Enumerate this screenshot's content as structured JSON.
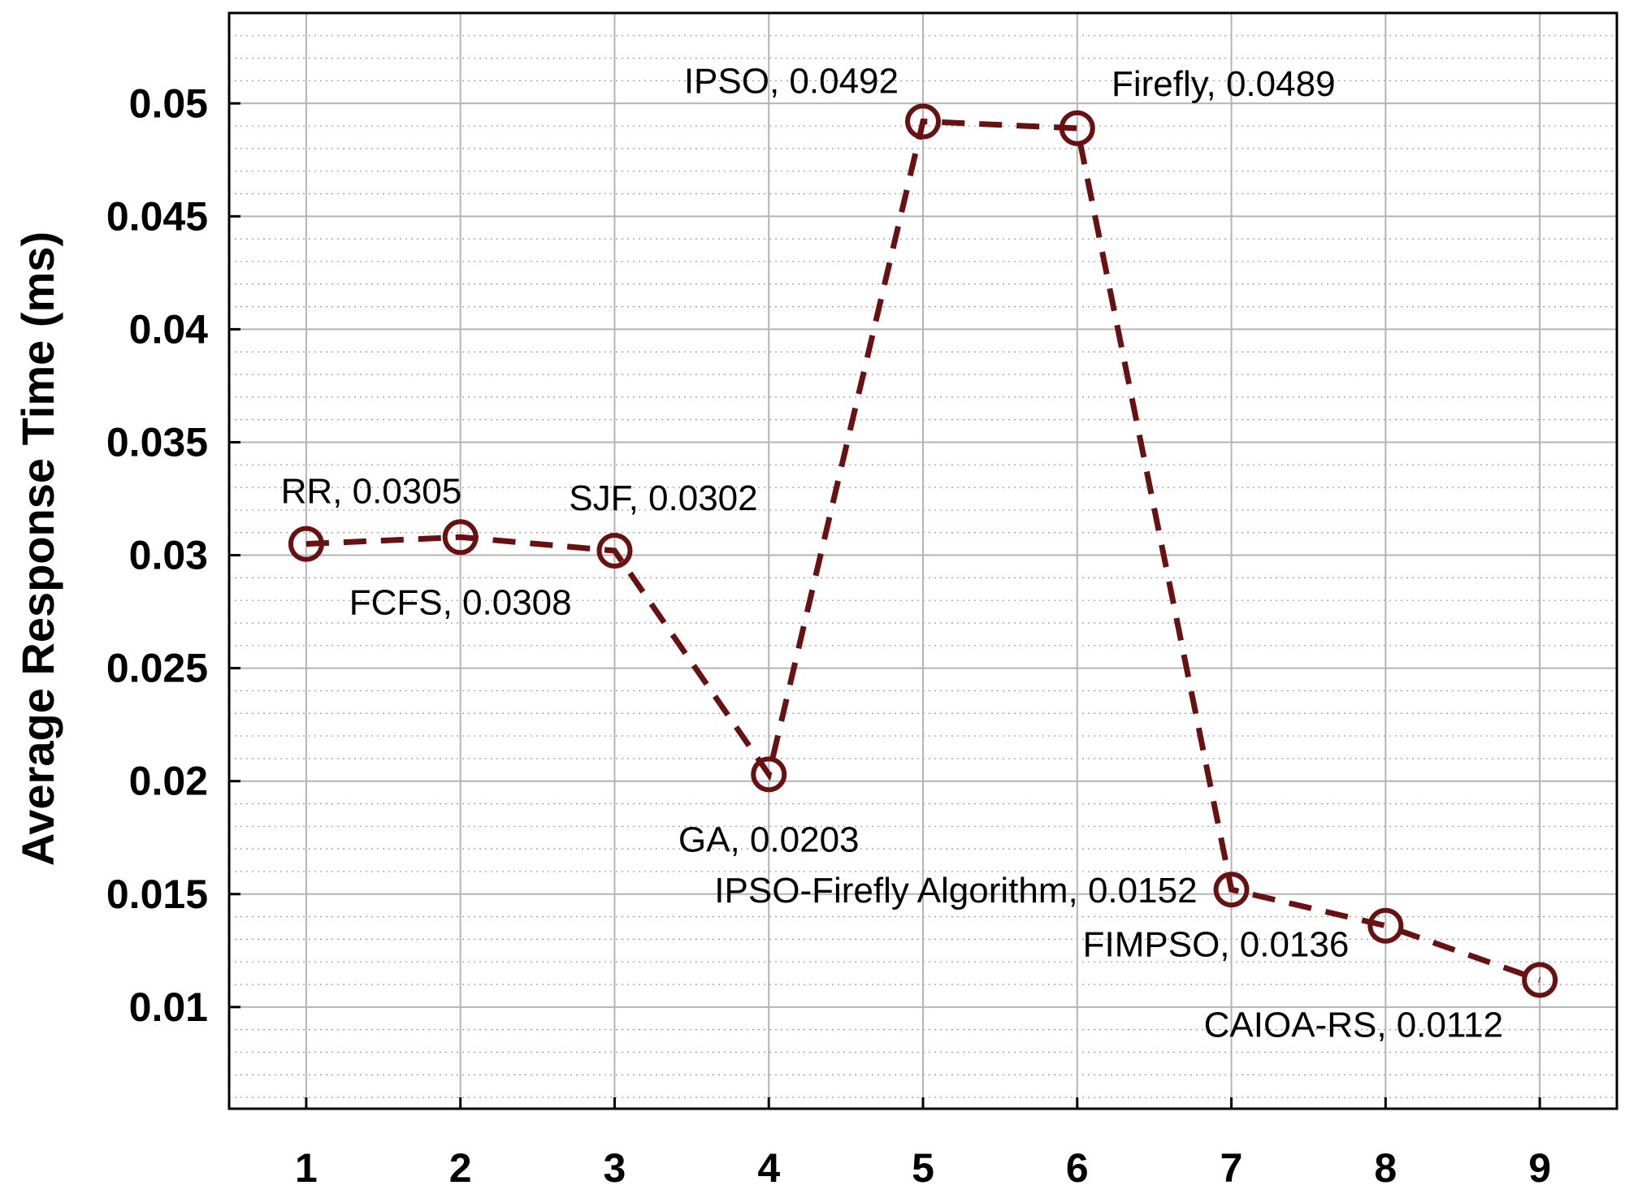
{
  "chart_data": {
    "type": "line",
    "title": "",
    "xlabel": "",
    "ylabel": "Average Response Time (ms)",
    "x": [
      1,
      2,
      3,
      4,
      5,
      6,
      7,
      8,
      9
    ],
    "xlim": [
      0.5,
      9.5
    ],
    "ylim": [
      0.0055,
      0.054
    ],
    "x_ticks": [
      1,
      2,
      3,
      4,
      5,
      6,
      7,
      8,
      9
    ],
    "x_tick_labels": [
      "1",
      "2",
      "3",
      "4",
      "5",
      "6",
      "7",
      "8",
      "9"
    ],
    "y_ticks": [
      0.01,
      0.015,
      0.02,
      0.025,
      0.03,
      0.035,
      0.04,
      0.045,
      0.05
    ],
    "y_tick_labels": [
      "0.01",
      "0.015",
      "0.02",
      "0.025",
      "0.03",
      "0.035",
      "0.04",
      "0.045",
      "0.05"
    ],
    "grid": true,
    "minor_grid": true,
    "legend": "none",
    "series": [
      {
        "values": [
          0.0305,
          0.0308,
          0.0302,
          0.0203,
          0.0492,
          0.0489,
          0.0152,
          0.0136,
          0.0112
        ],
        "color": "#6b1010",
        "line_style": "dashed",
        "marker": "open-circle"
      }
    ],
    "annotations": [
      {
        "x": 1,
        "text": "RR, 0.0305",
        "placement": "above"
      },
      {
        "x": 2,
        "text": "FCFS, 0.0308",
        "placement": "below"
      },
      {
        "x": 3,
        "text": "SJF, 0.0302",
        "placement": "above"
      },
      {
        "x": 4,
        "text": "GA, 0.0203",
        "placement": "below"
      },
      {
        "x": 5,
        "text": "IPSO, 0.0492",
        "placement": "above-left"
      },
      {
        "x": 6,
        "text": "Firefly, 0.0489",
        "placement": "above"
      },
      {
        "x": 7,
        "text": "IPSO-Firefly Algorithm, 0.0152",
        "placement": "left"
      },
      {
        "x": 8,
        "text": "FIMPSO, 0.0136",
        "placement": "below-left"
      },
      {
        "x": 9,
        "text": "CAIOA-RS, 0.0112",
        "placement": "below-left"
      }
    ]
  }
}
